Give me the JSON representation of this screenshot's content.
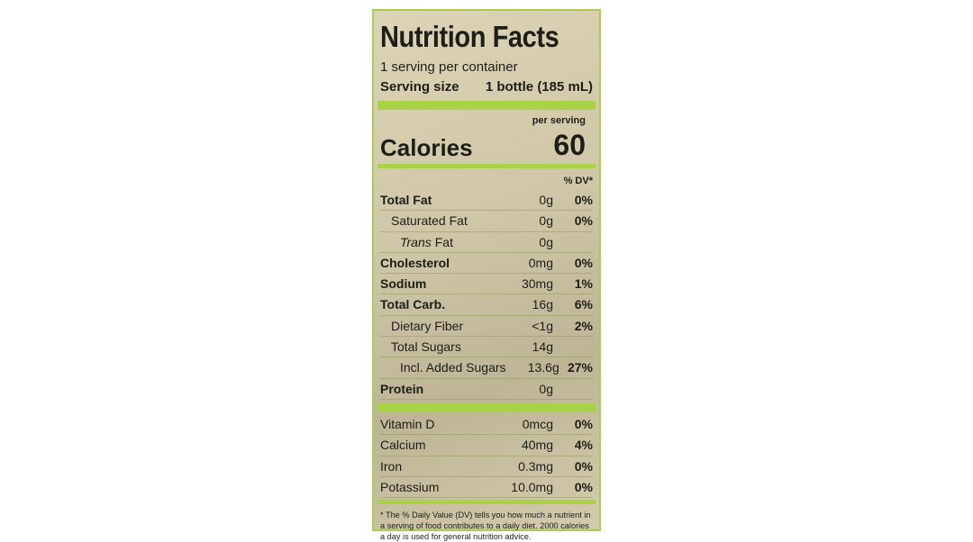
{
  "label": {
    "title": "Nutrition Facts",
    "servings": "1 serving per container",
    "serving_size_label": "Serving size",
    "serving_size": "1 bottle (185 mL)",
    "per_serving": "per serving",
    "calories_label": "Calories",
    "calories": "60",
    "dv_header": "% DV*",
    "nutrients": [
      {
        "name": "Total Fat",
        "amount": "0g",
        "dv": "0%"
      },
      {
        "name": "Saturated Fat",
        "amount": "0g",
        "dv": "0%"
      },
      {
        "name_italic": "Trans",
        "name": "Fat",
        "amount": "0g"
      },
      {
        "name": "Cholesterol",
        "amount": "0mg",
        "dv": "0%"
      },
      {
        "name": "Sodium",
        "amount": "30mg",
        "dv": "1%"
      },
      {
        "name": "Total Carb.",
        "amount": "16g",
        "dv": "6%"
      },
      {
        "name": "Dietary Fiber",
        "amount": "<1g",
        "dv": "2%"
      },
      {
        "name": "Total Sugars",
        "amount": "14g"
      },
      {
        "name": "Incl. Added Sugars",
        "amount": "13.6g",
        "dv": "27%"
      },
      {
        "name": "Protein",
        "amount": "0g"
      }
    ],
    "vitamins": [
      {
        "name": "Vitamin D",
        "amount": "0mcg",
        "dv": "0%"
      },
      {
        "name": "Calcium",
        "amount": "40mg",
        "dv": "4%"
      },
      {
        "name": "Iron",
        "amount": "0.3mg",
        "dv": "0%"
      },
      {
        "name": "Potassium",
        "amount": "10.0mg",
        "dv": "0%"
      }
    ],
    "footnote": "* The % Daily Value (DV) tells you how much a nutrient in a serving of food contributes to a daily diet. 2000 calories a day is used for general nutrition advice."
  }
}
